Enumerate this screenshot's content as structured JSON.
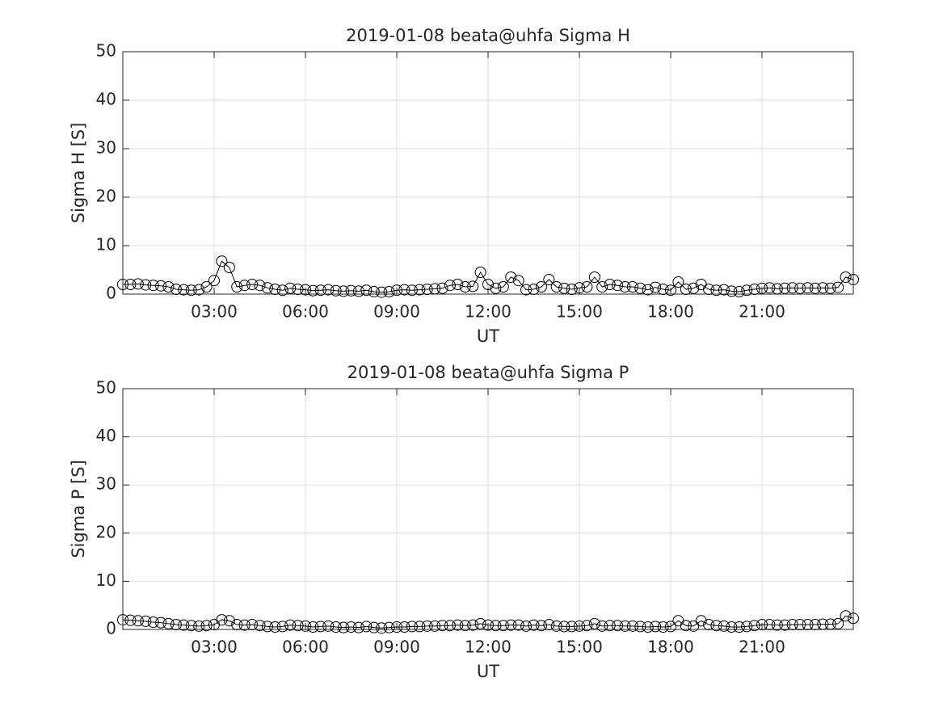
{
  "chart_data": [
    {
      "type": "line",
      "title": "2019-01-08  beata@uhfa Sigma H",
      "xlabel": "UT",
      "ylabel": "Sigma H [S]",
      "color": "#000000",
      "marker": "o",
      "grid": true,
      "xlim": [
        0,
        24
      ],
      "ylim": [
        0,
        50
      ],
      "xticks": [
        {
          "value": 3,
          "label": "03:00"
        },
        {
          "value": 6,
          "label": "06:00"
        },
        {
          "value": 9,
          "label": "09:00"
        },
        {
          "value": 12,
          "label": "12:00"
        },
        {
          "value": 15,
          "label": "15:00"
        },
        {
          "value": 18,
          "label": "18:00"
        },
        {
          "value": 21,
          "label": "21:00"
        }
      ],
      "yticks": [
        0,
        10,
        20,
        30,
        40,
        50
      ],
      "x": [
        0,
        0.25,
        0.5,
        0.75,
        1,
        1.25,
        1.5,
        1.75,
        2,
        2.25,
        2.5,
        2.75,
        3,
        3.25,
        3.5,
        3.75,
        4,
        4.25,
        4.5,
        4.75,
        5,
        5.25,
        5.5,
        5.75,
        6,
        6.25,
        6.5,
        6.75,
        7,
        7.25,
        7.5,
        7.75,
        8,
        8.25,
        8.5,
        8.75,
        9,
        9.25,
        9.5,
        9.75,
        10,
        10.25,
        10.5,
        10.75,
        11,
        11.25,
        11.5,
        11.75,
        12,
        12.25,
        12.5,
        12.75,
        13,
        13.25,
        13.5,
        13.75,
        14,
        14.25,
        14.5,
        14.75,
        15,
        15.25,
        15.5,
        15.75,
        16,
        16.25,
        16.5,
        16.75,
        17,
        17.25,
        17.5,
        17.75,
        18,
        18.25,
        18.5,
        18.75,
        19,
        19.25,
        19.5,
        19.75,
        20,
        20.25,
        20.5,
        20.75,
        21,
        21.25,
        21.5,
        21.75,
        22,
        22.25,
        22.5,
        22.75,
        23,
        23.25,
        23.5,
        23.75,
        24
      ],
      "values": [
        2.0,
        2.0,
        2.1,
        1.9,
        1.8,
        1.7,
        1.5,
        1.0,
        0.9,
        0.8,
        0.9,
        1.5,
        2.8,
        6.8,
        5.5,
        1.5,
        1.8,
        2.0,
        1.8,
        1.3,
        1.0,
        0.8,
        1.2,
        1.0,
        0.9,
        0.7,
        0.8,
        0.9,
        0.7,
        0.6,
        0.7,
        0.6,
        0.8,
        0.5,
        0.4,
        0.5,
        0.8,
        0.9,
        0.8,
        0.9,
        1.0,
        1.1,
        1.2,
        1.8,
        2.0,
        1.5,
        1.6,
        4.5,
        2.0,
        1.2,
        1.5,
        3.5,
        2.8,
        0.9,
        1.0,
        1.5,
        3.0,
        1.5,
        1.2,
        1.0,
        1.3,
        1.5,
        3.5,
        1.5,
        2.0,
        1.8,
        1.5,
        1.5,
        1.2,
        0.9,
        1.4,
        1.0,
        0.8,
        2.5,
        1.0,
        1.2,
        2.0,
        1.0,
        0.8,
        0.9,
        0.6,
        0.5,
        0.8,
        1.0,
        1.2,
        1.3,
        1.1,
        1.2,
        1.3,
        1.2,
        1.3,
        1.2,
        1.3,
        1.2,
        1.4,
        3.5,
        3.0
      ]
    },
    {
      "type": "line",
      "title": "2019-01-08  beata@uhfa Sigma P",
      "xlabel": "UT",
      "ylabel": "Sigma P [S]",
      "color": "#000000",
      "marker": "o",
      "grid": true,
      "xlim": [
        0,
        24
      ],
      "ylim": [
        0,
        50
      ],
      "xticks": [
        {
          "value": 3,
          "label": "03:00"
        },
        {
          "value": 6,
          "label": "06:00"
        },
        {
          "value": 9,
          "label": "09:00"
        },
        {
          "value": 12,
          "label": "12:00"
        },
        {
          "value": 15,
          "label": "15:00"
        },
        {
          "value": 18,
          "label": "18:00"
        },
        {
          "value": 21,
          "label": "21:00"
        }
      ],
      "yticks": [
        0,
        10,
        20,
        30,
        40,
        50
      ],
      "x": [
        0,
        0.25,
        0.5,
        0.75,
        1,
        1.25,
        1.5,
        1.75,
        2,
        2.25,
        2.5,
        2.75,
        3,
        3.25,
        3.5,
        3.75,
        4,
        4.25,
        4.5,
        4.75,
        5,
        5.25,
        5.5,
        5.75,
        6,
        6.25,
        6.5,
        6.75,
        7,
        7.25,
        7.5,
        7.75,
        8,
        8.25,
        8.5,
        8.75,
        9,
        9.25,
        9.5,
        9.75,
        10,
        10.25,
        10.5,
        10.75,
        11,
        11.25,
        11.5,
        11.75,
        12,
        12.25,
        12.5,
        12.75,
        13,
        13.25,
        13.5,
        13.75,
        14,
        14.25,
        14.5,
        14.75,
        15,
        15.25,
        15.5,
        15.75,
        16,
        16.25,
        16.5,
        16.75,
        17,
        17.25,
        17.5,
        17.75,
        18,
        18.25,
        18.5,
        18.75,
        19,
        19.25,
        19.5,
        19.75,
        20,
        20.25,
        20.5,
        20.75,
        21,
        21.25,
        21.5,
        21.75,
        22,
        22.25,
        22.5,
        22.75,
        23,
        23.25,
        23.5,
        23.75,
        24
      ],
      "values": [
        2.0,
        1.9,
        1.8,
        1.7,
        1.5,
        1.4,
        1.2,
        1.0,
        0.9,
        0.8,
        0.7,
        0.8,
        1.0,
        2.0,
        1.8,
        1.0,
        0.9,
        1.0,
        0.8,
        0.6,
        0.5,
        0.6,
        0.9,
        0.8,
        0.7,
        0.5,
        0.6,
        0.7,
        0.5,
        0.4,
        0.5,
        0.4,
        0.6,
        0.4,
        0.3,
        0.4,
        0.5,
        0.5,
        0.6,
        0.6,
        0.7,
        0.7,
        0.8,
        0.8,
        0.9,
        0.8,
        0.9,
        1.2,
        0.9,
        0.8,
        0.8,
        0.9,
        0.9,
        0.7,
        0.9,
        0.8,
        1.0,
        0.7,
        0.6,
        0.6,
        0.7,
        0.8,
        1.2,
        0.7,
        0.8,
        0.8,
        0.7,
        0.7,
        0.6,
        0.5,
        0.6,
        0.5,
        0.6,
        1.8,
        0.8,
        0.7,
        1.8,
        1.0,
        0.8,
        0.7,
        0.5,
        0.5,
        0.6,
        0.8,
        1.0,
        1.0,
        0.9,
        0.9,
        1.0,
        1.0,
        1.0,
        1.0,
        1.1,
        1.1,
        1.2,
        2.8,
        2.3
      ]
    }
  ]
}
